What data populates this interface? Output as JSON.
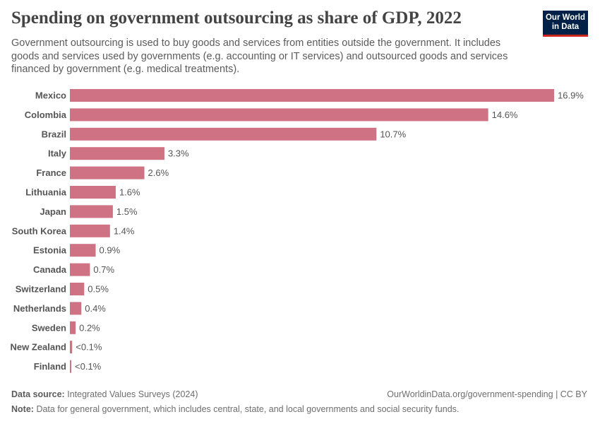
{
  "header": {
    "title": "Spending on government outsourcing as share of GDP, 2022",
    "subtitle": "Government outsourcing is used to buy goods and services from entities outside the government. It includes goods and services used by governments (e.g. accounting or IT services) and outsourced goods and services financed by government (e.g. medical treatments).",
    "logo_line1": "Our World",
    "logo_line2": "in Data"
  },
  "footer": {
    "source_label": "Data source:",
    "source_text": "Integrated Values Surveys (2024)",
    "url_text": "OurWorldinData.org/government-spending | CC BY",
    "note_label": "Note:",
    "note_text": "Data for general government, which includes central, state, and local governments and social security funds."
  },
  "colors": {
    "bar": "#cf7283",
    "logo_bg": "#002147",
    "logo_accent": "#ce261e"
  },
  "chart_data": {
    "type": "bar",
    "orientation": "horizontal",
    "unit": "%",
    "categories": [
      "Mexico",
      "Colombia",
      "Brazil",
      "Italy",
      "France",
      "Lithuania",
      "Japan",
      "South Korea",
      "Estonia",
      "Canada",
      "Switzerland",
      "Netherlands",
      "Sweden",
      "New Zealand",
      "Finland"
    ],
    "values": [
      16.9,
      14.6,
      10.7,
      3.3,
      2.6,
      1.6,
      1.5,
      1.4,
      0.9,
      0.7,
      0.5,
      0.4,
      0.2,
      0.08,
      0.05
    ],
    "value_labels": [
      "16.9%",
      "14.6%",
      "10.7%",
      "3.3%",
      "2.6%",
      "1.6%",
      "1.5%",
      "1.4%",
      "0.9%",
      "0.7%",
      "0.5%",
      "0.4%",
      "0.2%",
      "<0.1%",
      "<0.1%"
    ],
    "xlim": [
      0,
      16.9
    ],
    "grid": false,
    "legend": "none"
  }
}
